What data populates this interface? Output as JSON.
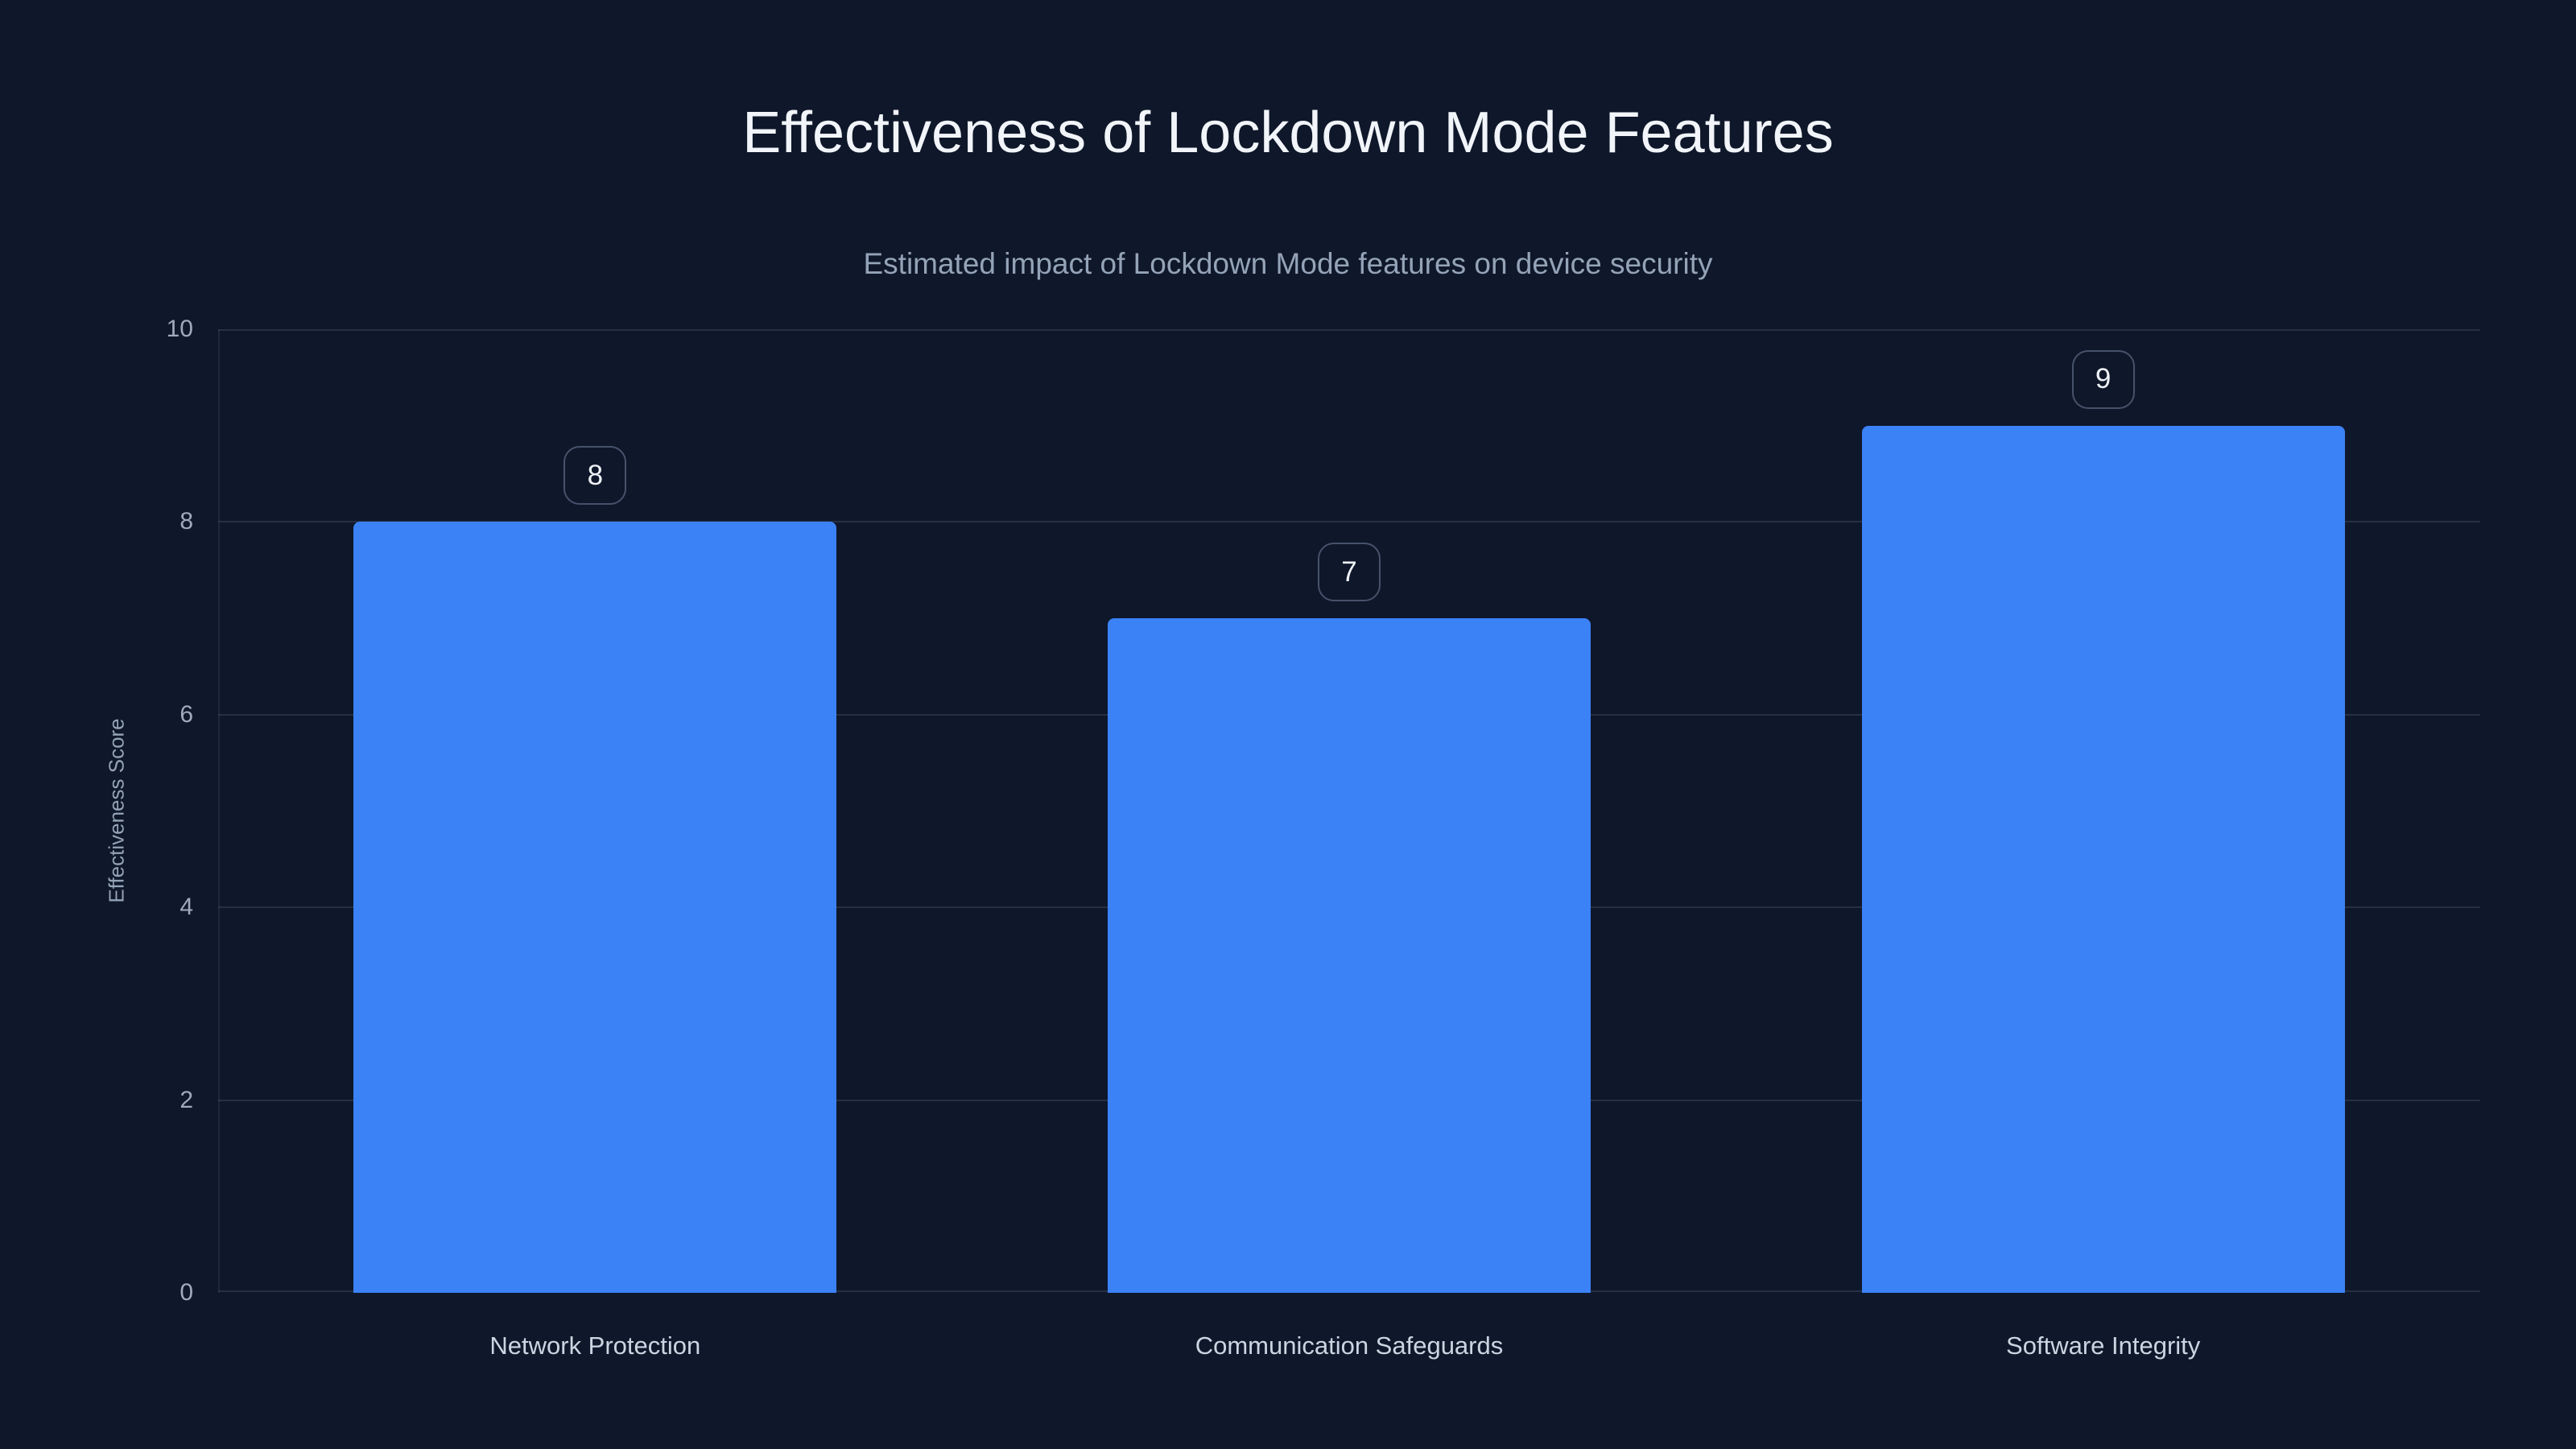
{
  "colors": {
    "background": "#0f172a",
    "bar": "#3b82f6",
    "title_text": "#f1f5f9",
    "subtitle_text": "#94a3b8",
    "tick_text": "#9fabbd",
    "category_text": "#cbd5e1",
    "gridline": "rgba(148,163,184,0.18)",
    "axis_line": "rgba(148,163,184,0.12)",
    "badge_border": "#46526b",
    "badge_text": "#eef2f6"
  },
  "chart": {
    "title": "Effectiveness of Lockdown Mode Features",
    "subtitle": "Estimated impact of Lockdown Mode features on device security"
  },
  "chart_data": {
    "type": "bar",
    "title": "Effectiveness of Lockdown Mode Features",
    "subtitle": "Estimated impact of Lockdown Mode features on device security",
    "categories": [
      "Network Protection",
      "Communication Safeguards",
      "Software Integrity"
    ],
    "values": [
      8,
      7,
      9
    ],
    "value_labels": [
      "8",
      "7",
      "9"
    ],
    "xlabel": "",
    "ylabel": "Effectiveness Score",
    "ylim": [
      0,
      10
    ],
    "yticks": [
      0,
      2,
      4,
      6,
      8,
      10
    ],
    "grid": true,
    "legend": false,
    "bar_color": "#3b82f6",
    "value_label_style": "rounded outlined badge above each bar"
  }
}
